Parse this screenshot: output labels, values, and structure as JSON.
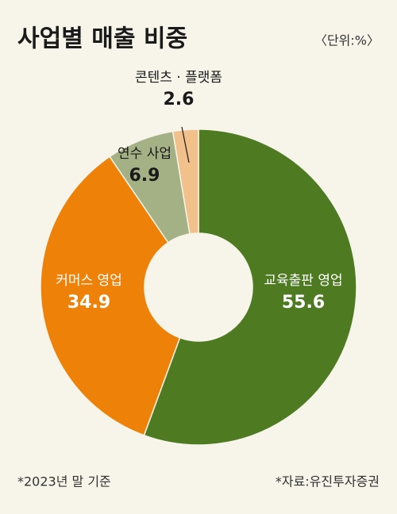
{
  "chart_data": {
    "type": "donut",
    "title": "사업별 매출 비중",
    "unit_note": "〈단위:%〉",
    "categories": [
      "교육출판 영업",
      "커머스 영업",
      "연수 사업",
      "콘텐츠 · 플랫폼"
    ],
    "values": [
      55.6,
      34.9,
      6.9,
      2.6
    ],
    "colors": [
      "#4e7a22",
      "#ee8208",
      "#a3b184",
      "#f2c08a"
    ],
    "footnote": "*2023년 말 기준",
    "source": "*자료:유진투자증권"
  }
}
